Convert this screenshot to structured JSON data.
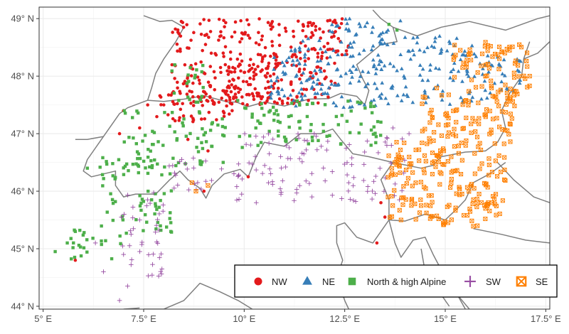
{
  "map": {
    "x_ticks": [
      "5° E",
      "7.5° E",
      "10° E",
      "12.5° E",
      "15° E",
      "17.5° E"
    ],
    "y_ticks": [
      "44° N",
      "45° N",
      "46° N",
      "47° N",
      "48° N",
      "49° N"
    ],
    "x_tick_values": [
      5,
      7.5,
      10,
      12.5,
      15,
      17.5
    ],
    "y_tick_values": [
      44,
      45,
      46,
      47,
      48,
      49
    ],
    "xlim": [
      4.9,
      17.6
    ],
    "ylim": [
      43.95,
      49.2
    ],
    "grid": true,
    "border_color": "#7f7f7f",
    "legend_placement": "bottom-right"
  },
  "legend": {
    "items": [
      {
        "label": "NW",
        "color": "#e31a1c",
        "shape": "circle"
      },
      {
        "label": "NE",
        "color": "#377eb8",
        "shape": "triangle"
      },
      {
        "label": "North & high Alpine",
        "color": "#4daf4a",
        "shape": "square"
      },
      {
        "label": "SW",
        "color": "#984ea3",
        "shape": "plus"
      },
      {
        "label": "SE",
        "color": "#ff7f00",
        "shape": "boxed-x"
      }
    ]
  },
  "chart_data": {
    "type": "scatter",
    "title": "",
    "xlabel": "",
    "ylabel": "",
    "xlim": [
      4.9,
      17.6
    ],
    "ylim": [
      43.95,
      49.2
    ],
    "series": [
      {
        "name": "NW",
        "color": "#e31a1c",
        "shape": "circle",
        "regions": [
          [
            8.2,
            12.3,
            47.5,
            49.0
          ],
          [
            7.8,
            9.8,
            47.2,
            47.9
          ],
          [
            9.6,
            11.4,
            47.5,
            48.4
          ],
          [
            11.6,
            12.6,
            48.3,
            49.0
          ]
        ],
        "count": 430,
        "points": [
          [
            7.0,
            47.4
          ],
          [
            7.4,
            47.1
          ],
          [
            6.9,
            47.0
          ],
          [
            8.6,
            46.9
          ],
          [
            9.1,
            46.7
          ],
          [
            8.0,
            47.5
          ],
          [
            7.6,
            47.5
          ],
          [
            9.5,
            47.3
          ],
          [
            9.7,
            47.4
          ],
          [
            10.1,
            46.25
          ],
          [
            9.0,
            46.0
          ],
          [
            13.4,
            45.8
          ],
          [
            13.5,
            45.55
          ],
          [
            13.3,
            45.1
          ],
          [
            5.8,
            44.8
          ]
        ]
      },
      {
        "name": "NE",
        "color": "#377eb8",
        "shape": "triangle",
        "regions": [
          [
            11.2,
            13.5,
            47.45,
            48.9
          ],
          [
            13.2,
            15.7,
            47.5,
            48.7
          ],
          [
            10.6,
            11.5,
            47.6,
            48.5
          ],
          [
            12.4,
            13.9,
            48.7,
            49.0
          ],
          [
            15.5,
            16.9,
            47.6,
            48.4
          ]
        ],
        "count": 300,
        "points": [
          [
            16.8,
            48.1
          ],
          [
            16.4,
            47.9
          ],
          [
            15.9,
            47.6
          ],
          [
            15.1,
            48.6
          ]
        ]
      },
      {
        "name": "North & high Alpine",
        "color": "#4daf4a",
        "shape": "square",
        "regions": [
          [
            9.8,
            13.5,
            46.75,
            47.6
          ],
          [
            7.0,
            9.6,
            46.4,
            47.4
          ],
          [
            6.4,
            8.2,
            45.2,
            46.6
          ],
          [
            5.6,
            7.0,
            44.8,
            45.4
          ],
          [
            8.2,
            9.0,
            47.3,
            48.2
          ]
        ],
        "count": 270,
        "points": [
          [
            5.3,
            44.95
          ],
          [
            5.8,
            45.3
          ],
          [
            5.6,
            45.1
          ],
          [
            6.1,
            46.4
          ],
          [
            13.6,
            48.9
          ],
          [
            13.8,
            48.8
          ],
          [
            13.4,
            47.2
          ]
        ]
      },
      {
        "name": "SW",
        "color": "#984ea3",
        "shape": "plus",
        "regions": [
          [
            9.8,
            14.0,
            45.8,
            47.0
          ],
          [
            8.0,
            9.9,
            46.0,
            46.6
          ],
          [
            6.9,
            8.0,
            44.4,
            46.0
          ]
        ],
        "count": 170,
        "points": [
          [
            6.3,
            45.1
          ],
          [
            6.5,
            44.6
          ],
          [
            6.9,
            44.1
          ],
          [
            7.1,
            44.35
          ],
          [
            7.0,
            44.9
          ],
          [
            7.6,
            45.85
          ],
          [
            7.4,
            45.5
          ],
          [
            13.7,
            47.1
          ],
          [
            14.1,
            47.0
          ],
          [
            10.3,
            45.8
          ]
        ]
      },
      {
        "name": "SE",
        "color": "#ff7f00",
        "shape": "boxed-x",
        "regions": [
          [
            13.5,
            16.5,
            45.5,
            46.9
          ],
          [
            14.4,
            16.8,
            46.8,
            47.8
          ],
          [
            15.2,
            17.1,
            47.8,
            48.6
          ],
          [
            14.6,
            15.7,
            45.35,
            45.6
          ]
        ],
        "count": 340,
        "points": [
          [
            13.9,
            45.5
          ],
          [
            14.4,
            45.75
          ],
          [
            15.8,
            45.4
          ],
          [
            16.0,
            45.7
          ],
          [
            8.8,
            46.0
          ],
          [
            9.1,
            46.1
          ],
          [
            8.7,
            46.15
          ],
          [
            17.1,
            48.0
          ],
          [
            16.6,
            48.45
          ]
        ]
      }
    ],
    "borders": [
      {
        "name": "north-border",
        "points": [
          [
            7.5,
            49.05
          ],
          [
            7.9,
            48.95
          ],
          [
            8.2,
            48.97
          ],
          [
            8.5,
            48.85
          ],
          [
            8.3,
            48.6
          ],
          [
            8.0,
            48.3
          ],
          [
            7.8,
            48.05
          ],
          [
            7.7,
            47.8
          ],
          [
            7.6,
            47.58
          ],
          [
            8.0,
            47.56
          ],
          [
            8.5,
            47.6
          ],
          [
            9.0,
            47.66
          ],
          [
            9.6,
            47.55
          ],
          [
            9.8,
            47.55
          ],
          [
            10.1,
            47.47
          ],
          [
            10.5,
            47.55
          ],
          [
            11.0,
            47.48
          ],
          [
            11.6,
            47.6
          ],
          [
            12.1,
            47.61
          ],
          [
            12.4,
            47.7
          ],
          [
            12.8,
            47.65
          ],
          [
            13.0,
            47.5
          ],
          [
            13.1,
            47.75
          ],
          [
            12.95,
            47.95
          ],
          [
            12.8,
            48.2
          ],
          [
            13.4,
            48.55
          ],
          [
            13.8,
            48.6
          ],
          [
            13.7,
            48.85
          ],
          [
            13.4,
            49.0
          ],
          [
            13.2,
            49.15
          ]
        ]
      },
      {
        "name": "south-border",
        "points": [
          [
            7.6,
            47.58
          ],
          [
            7.1,
            47.45
          ],
          [
            6.9,
            47.35
          ],
          [
            6.5,
            46.95
          ],
          [
            6.1,
            46.55
          ],
          [
            6.0,
            46.35
          ],
          [
            6.2,
            46.25
          ],
          [
            6.8,
            46.35
          ],
          [
            6.8,
            46.1
          ],
          [
            7.0,
            45.9
          ],
          [
            7.3,
            45.95
          ],
          [
            7.8,
            45.95
          ],
          [
            8.15,
            46.2
          ],
          [
            8.4,
            46.35
          ],
          [
            8.6,
            46.2
          ],
          [
            8.9,
            46.05
          ],
          [
            9.05,
            45.88
          ],
          [
            9.2,
            46.1
          ],
          [
            9.5,
            46.3
          ],
          [
            9.9,
            46.38
          ],
          [
            10.1,
            46.25
          ],
          [
            10.3,
            46.6
          ],
          [
            10.5,
            46.85
          ],
          [
            11.0,
            46.78
          ],
          [
            11.4,
            47.0
          ],
          [
            11.9,
            47.0
          ],
          [
            12.2,
            47.08
          ],
          [
            12.4,
            46.9
          ],
          [
            12.7,
            46.65
          ],
          [
            13.1,
            46.6
          ],
          [
            13.7,
            46.5
          ],
          [
            14.4,
            46.4
          ],
          [
            14.7,
            46.45
          ],
          [
            14.9,
            46.6
          ],
          [
            15.5,
            46.68
          ],
          [
            16.0,
            46.7
          ],
          [
            16.3,
            46.85
          ],
          [
            16.5,
            47.1
          ],
          [
            16.4,
            47.4
          ],
          [
            16.6,
            47.7
          ],
          [
            16.9,
            48.0
          ],
          [
            16.95,
            48.3
          ],
          [
            17.1,
            48.6
          ]
        ]
      },
      {
        "name": "slovenia-croatia-border",
        "points": [
          [
            13.6,
            45.5
          ],
          [
            14.0,
            45.48
          ],
          [
            14.5,
            45.6
          ],
          [
            15.0,
            45.5
          ],
          [
            15.3,
            45.7
          ],
          [
            15.5,
            45.85
          ],
          [
            15.7,
            46.15
          ],
          [
            16.1,
            46.3
          ],
          [
            16.5,
            46.5
          ]
        ]
      },
      {
        "name": "italy-slovenia-border",
        "points": [
          [
            13.7,
            46.5
          ],
          [
            13.4,
            46.2
          ],
          [
            13.6,
            45.85
          ],
          [
            13.6,
            45.5
          ]
        ]
      },
      {
        "name": "vienna-east",
        "points": [
          [
            16.95,
            48.3
          ],
          [
            17.3,
            48.4
          ],
          [
            17.6,
            48.6
          ]
        ]
      },
      {
        "name": "czech-northeast",
        "points": [
          [
            13.7,
            48.85
          ],
          [
            14.3,
            48.7
          ],
          [
            14.9,
            48.85
          ],
          [
            15.6,
            48.95
          ],
          [
            16.5,
            48.8
          ],
          [
            16.9,
            48.9
          ],
          [
            17.3,
            49.0
          ],
          [
            17.6,
            49.05
          ]
        ]
      },
      {
        "name": "hungary-slovenia",
        "points": [
          [
            16.3,
            46.5
          ],
          [
            16.7,
            46.2
          ],
          [
            17.2,
            45.9
          ],
          [
            17.6,
            45.8
          ]
        ]
      },
      {
        "name": "croatia-bosnia",
        "points": [
          [
            15.7,
            45.35
          ],
          [
            16.4,
            45.25
          ],
          [
            17.0,
            45.15
          ],
          [
            17.6,
            45.1
          ]
        ]
      },
      {
        "name": "italy-coast-1",
        "points": [
          [
            13.6,
            45.5
          ],
          [
            13.4,
            45.3
          ],
          [
            13.2,
            45.1
          ],
          [
            12.8,
            45.2
          ],
          [
            12.5,
            45.45
          ],
          [
            12.3,
            45.4
          ],
          [
            12.3,
            45.1
          ],
          [
            12.45,
            44.8
          ],
          [
            12.3,
            44.5
          ],
          [
            12.5,
            44.1
          ],
          [
            12.6,
            43.95
          ]
        ]
      },
      {
        "name": "istria-coast",
        "points": [
          [
            13.6,
            45.5
          ],
          [
            13.75,
            45.1
          ],
          [
            13.9,
            44.85
          ],
          [
            14.2,
            45.15
          ],
          [
            14.5,
            45.2
          ],
          [
            14.7,
            44.9
          ],
          [
            15.0,
            44.5
          ],
          [
            15.3,
            44.2
          ],
          [
            15.5,
            43.95
          ]
        ]
      },
      {
        "name": "island-a",
        "points": [
          [
            14.4,
            45.0
          ],
          [
            14.5,
            44.6
          ],
          [
            14.7,
            44.35
          ]
        ]
      },
      {
        "name": "island-b",
        "points": [
          [
            14.8,
            44.3
          ],
          [
            15.1,
            44.0
          ]
        ]
      },
      {
        "name": "island-c",
        "points": [
          [
            15.3,
            44.2
          ],
          [
            15.6,
            43.95
          ]
        ]
      },
      {
        "name": "ligurian-coast",
        "points": [
          [
            7.5,
            43.95
          ],
          [
            8.0,
            43.95
          ],
          [
            8.5,
            44.1
          ],
          [
            8.9,
            44.4
          ],
          [
            9.4,
            44.25
          ],
          [
            9.85,
            44.1
          ],
          [
            10.2,
            43.95
          ]
        ]
      },
      {
        "name": "france-coast",
        "points": [
          [
            7.0,
            43.95
          ],
          [
            7.4,
            43.97
          ]
        ]
      },
      {
        "name": "swiss-west",
        "points": [
          [
            6.5,
            46.95
          ],
          [
            6.1,
            46.9
          ],
          [
            5.8,
            46.9
          ]
        ]
      }
    ]
  }
}
